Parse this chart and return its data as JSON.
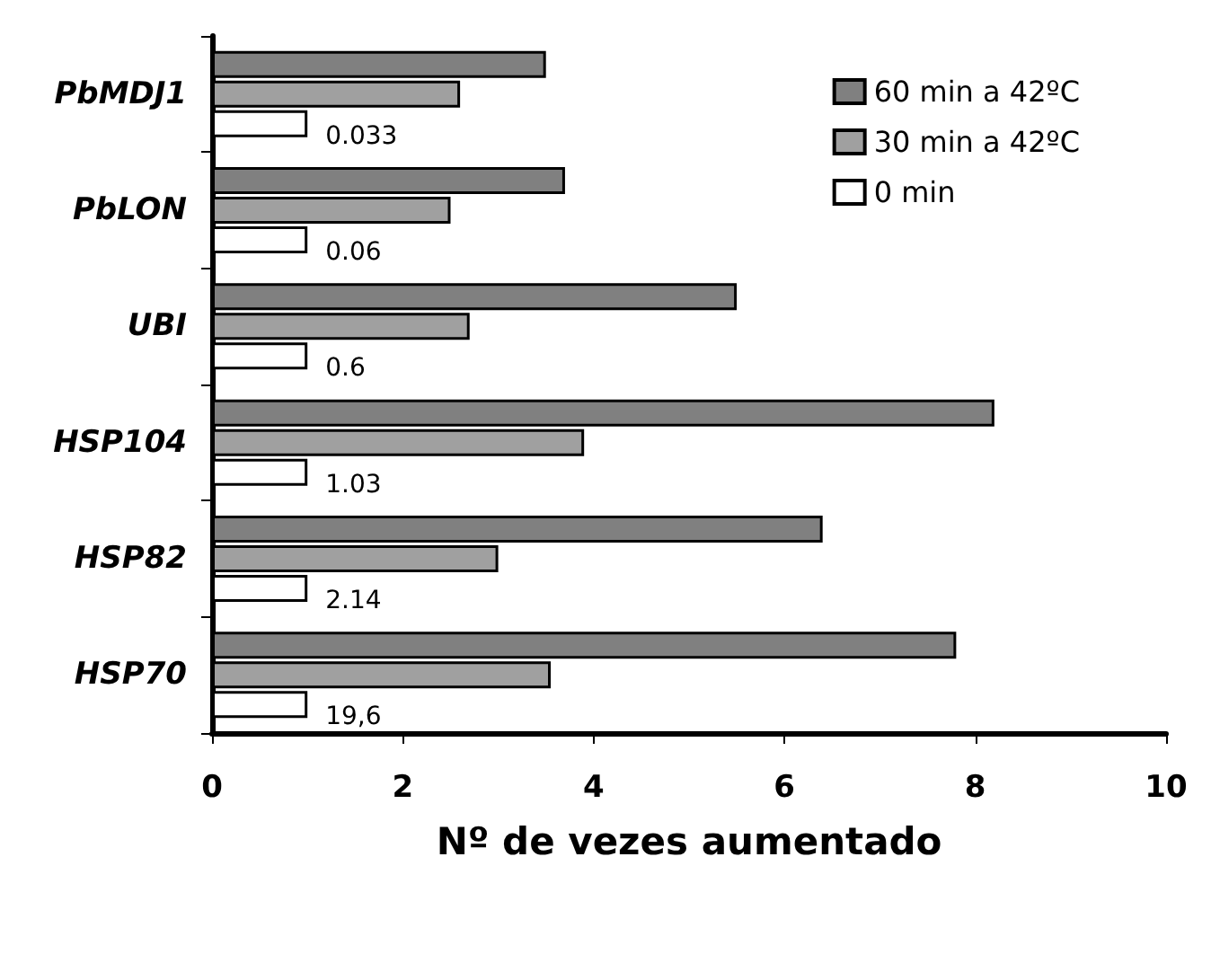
{
  "chart_data": {
    "type": "bar",
    "orientation": "horizontal",
    "xlabel": "Nº de vezes aumentado",
    "categories": [
      "PbMDJ1",
      "PbLON",
      "UBI",
      "HSP104",
      "HSP82",
      "HSP70"
    ],
    "series": [
      {
        "name": "60 min a 42ºC",
        "color": "#808080",
        "values": [
          3.5,
          3.7,
          5.5,
          8.2,
          6.4,
          7.8
        ]
      },
      {
        "name": "30 min a 42ºC",
        "color": "#a0a0a0",
        "values": [
          2.6,
          2.5,
          2.7,
          3.9,
          3.0,
          3.55
        ]
      },
      {
        "name": "0 min",
        "color": "#ffffff",
        "values": [
          1,
          1,
          1,
          1,
          1,
          1
        ]
      }
    ],
    "annotations": [
      "0.033",
      "0.06",
      "0.6",
      "1.03",
      "2.14",
      "19,6"
    ],
    "xlim": [
      0,
      10
    ],
    "xticks": [
      0,
      2,
      4,
      6,
      8,
      10
    ],
    "grid": false,
    "legend": "top right"
  }
}
